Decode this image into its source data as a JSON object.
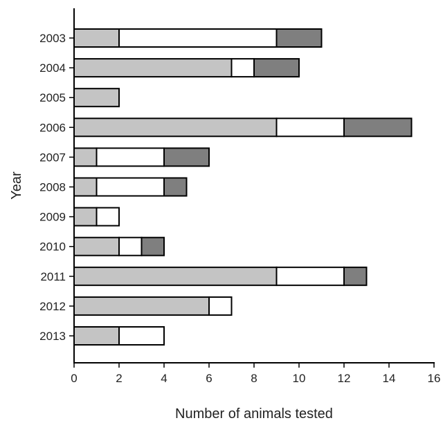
{
  "chart_data": {
    "type": "bar",
    "orientation": "horizontal",
    "stacked": true,
    "title": "",
    "xlabel": "Number of animals tested",
    "ylabel": "Year",
    "xlim": [
      0,
      16
    ],
    "x_ticks": [
      "0",
      "2",
      "4",
      "6",
      "8",
      "10",
      "12",
      "14",
      "16"
    ],
    "categories": [
      "2003",
      "2004",
      "2005",
      "2006",
      "2007",
      "2008",
      "2009",
      "2010",
      "2011",
      "2012",
      "2013"
    ],
    "series": [
      {
        "color": "#c4c4c4",
        "values": [
          2,
          7,
          2,
          9,
          1,
          1,
          1,
          2,
          9,
          6,
          2
        ]
      },
      {
        "color": "#ffffff",
        "values": [
          7,
          1,
          0,
          3,
          3,
          3,
          1,
          1,
          3,
          1,
          2
        ]
      },
      {
        "color": "#7f7f7f",
        "values": [
          2,
          2,
          0,
          3,
          2,
          1,
          0,
          1,
          1,
          0,
          0
        ]
      }
    ],
    "grid": false,
    "legend": "none"
  }
}
